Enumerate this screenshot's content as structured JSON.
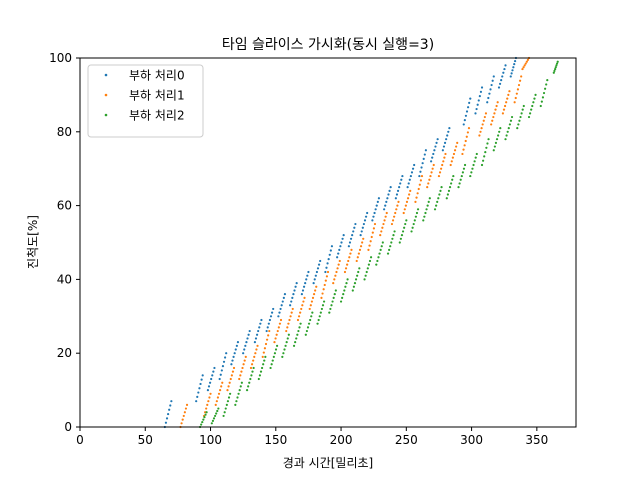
{
  "chart_data": {
    "type": "scatter",
    "title": "타임 슬라이스 가시화(동시 실행=3)",
    "xlabel": "경과 시간[밀리초]",
    "ylabel": "진척도[%]",
    "xlim": [
      0,
      380
    ],
    "ylim": [
      0,
      100
    ],
    "xticks": [
      0,
      50,
      100,
      150,
      200,
      250,
      300,
      350
    ],
    "yticks": [
      0,
      20,
      40,
      60,
      80,
      100
    ],
    "grid": false,
    "legend_position": "top-left",
    "series": [
      {
        "name": "부하 처리0",
        "color": "#1f77b4",
        "bursts": [
          [
            [
              65,
              0
            ],
            [
              70,
              7
            ]
          ],
          [
            [
              89,
              7
            ],
            [
              94,
              14
            ]
          ],
          [
            [
              98,
              10
            ],
            [
              103,
              16
            ]
          ],
          [
            [
              107,
              13
            ],
            [
              112,
              20
            ]
          ],
          [
            [
              116,
              17
            ],
            [
              121,
              23
            ]
          ],
          [
            [
              125,
              20
            ],
            [
              130,
              26
            ]
          ],
          [
            [
              134,
              23
            ],
            [
              139,
              29
            ]
          ],
          [
            [
              143,
              26
            ],
            [
              148,
              32
            ]
          ],
          [
            [
              152,
              30
            ],
            [
              157,
              36
            ]
          ],
          [
            [
              161,
              33
            ],
            [
              166,
              39
            ]
          ],
          [
            [
              170,
              36
            ],
            [
              175,
              42
            ]
          ],
          [
            [
              179,
              39
            ],
            [
              184,
              45
            ]
          ],
          [
            [
              188,
              42
            ],
            [
              193,
              49
            ]
          ],
          [
            [
              197,
              46
            ],
            [
              202,
              52
            ]
          ],
          [
            [
              206,
              49
            ],
            [
              211,
              55
            ]
          ],
          [
            [
              215,
              52
            ],
            [
              220,
              58
            ]
          ],
          [
            [
              224,
              56
            ],
            [
              229,
              62
            ]
          ],
          [
            [
              233,
              59
            ],
            [
              238,
              65
            ]
          ],
          [
            [
              242,
              62
            ],
            [
              247,
              68
            ]
          ],
          [
            [
              251,
              65
            ],
            [
              256,
              71
            ]
          ],
          [
            [
              260,
              68
            ],
            [
              265,
              75
            ]
          ],
          [
            [
              269,
              72
            ],
            [
              274,
              78
            ]
          ],
          [
            [
              278,
              75
            ],
            [
              283,
              81
            ]
          ],
          [
            [
              294,
              82
            ],
            [
              299,
              89
            ]
          ],
          [
            [
              303,
              85
            ],
            [
              308,
              92
            ]
          ],
          [
            [
              312,
              88
            ],
            [
              317,
              95
            ]
          ],
          [
            [
              321,
              92
            ],
            [
              326,
              98
            ]
          ],
          [
            [
              330,
              95
            ],
            [
              334,
              100
            ]
          ]
        ]
      },
      {
        "name": "부하 처리1",
        "color": "#ff7f0e",
        "bursts": [
          [
            [
              77,
              0
            ],
            [
              82,
              6
            ]
          ],
          [
            [
              95,
              3
            ],
            [
              100,
              9
            ]
          ],
          [
            [
              104,
              6
            ],
            [
              109,
              12
            ]
          ],
          [
            [
              113,
              10
            ],
            [
              118,
              16
            ]
          ],
          [
            [
              122,
              13
            ],
            [
              127,
              19
            ]
          ],
          [
            [
              131,
              16
            ],
            [
              136,
              22
            ]
          ],
          [
            [
              140,
              19
            ],
            [
              145,
              26
            ]
          ],
          [
            [
              149,
              23
            ],
            [
              154,
              29
            ]
          ],
          [
            [
              158,
              26
            ],
            [
              163,
              32
            ]
          ],
          [
            [
              167,
              29
            ],
            [
              172,
              35
            ]
          ],
          [
            [
              176,
              32
            ],
            [
              181,
              38
            ]
          ],
          [
            [
              185,
              35
            ],
            [
              190,
              42
            ]
          ],
          [
            [
              194,
              39
            ],
            [
              199,
              45
            ]
          ],
          [
            [
              203,
              42
            ],
            [
              208,
              48
            ]
          ],
          [
            [
              212,
              45
            ],
            [
              217,
              51
            ]
          ],
          [
            [
              221,
              48
            ],
            [
              226,
              55
            ]
          ],
          [
            [
              230,
              52
            ],
            [
              235,
              58
            ]
          ],
          [
            [
              239,
              55
            ],
            [
              244,
              61
            ]
          ],
          [
            [
              248,
              58
            ],
            [
              253,
              64
            ]
          ],
          [
            [
              257,
              61
            ],
            [
              262,
              68
            ]
          ],
          [
            [
              266,
              65
            ],
            [
              271,
              71
            ]
          ],
          [
            [
              275,
              68
            ],
            [
              280,
              74
            ]
          ],
          [
            [
              284,
              71
            ],
            [
              289,
              77
            ]
          ],
          [
            [
              293,
              74
            ],
            [
              298,
              81
            ]
          ],
          [
            [
              306,
              79
            ],
            [
              311,
              85
            ]
          ],
          [
            [
              315,
              82
            ],
            [
              320,
              88
            ]
          ],
          [
            [
              324,
              85
            ],
            [
              329,
              91
            ]
          ],
          [
            [
              333,
              88
            ],
            [
              338,
              95
            ]
          ],
          [
            [
              339,
              97
            ],
            [
              344,
              100
            ]
          ]
        ]
      },
      {
        "name": "부하 처리2",
        "color": "#2ca02c",
        "bursts": [
          [
            [
              92,
              0
            ],
            [
              97,
              4
            ]
          ],
          [
            [
              101,
              1
            ],
            [
              106,
              5
            ]
          ],
          [
            [
              110,
              3
            ],
            [
              115,
              9
            ]
          ],
          [
            [
              119,
              6
            ],
            [
              124,
              12
            ]
          ],
          [
            [
              128,
              10
            ],
            [
              133,
              16
            ]
          ],
          [
            [
              137,
              13
            ],
            [
              142,
              19
            ]
          ],
          [
            [
              146,
              16
            ],
            [
              151,
              22
            ]
          ],
          [
            [
              155,
              19
            ],
            [
              160,
              25
            ]
          ],
          [
            [
              164,
              22
            ],
            [
              169,
              28
            ]
          ],
          [
            [
              173,
              25
            ],
            [
              178,
              31
            ]
          ],
          [
            [
              182,
              28
            ],
            [
              187,
              34
            ]
          ],
          [
            [
              191,
              31
            ],
            [
              196,
              37
            ]
          ],
          [
            [
              200,
              34
            ],
            [
              205,
              40
            ]
          ],
          [
            [
              209,
              37
            ],
            [
              214,
              43
            ]
          ],
          [
            [
              218,
              40
            ],
            [
              223,
              46
            ]
          ],
          [
            [
              227,
              44
            ],
            [
              232,
              50
            ]
          ],
          [
            [
              236,
              47
            ],
            [
              241,
              53
            ]
          ],
          [
            [
              245,
              50
            ],
            [
              250,
              56
            ]
          ],
          [
            [
              254,
              53
            ],
            [
              259,
              59
            ]
          ],
          [
            [
              263,
              56
            ],
            [
              268,
              62
            ]
          ],
          [
            [
              272,
              59
            ],
            [
              277,
              65
            ]
          ],
          [
            [
              281,
              62
            ],
            [
              286,
              68
            ]
          ],
          [
            [
              290,
              65
            ],
            [
              295,
              71
            ]
          ],
          [
            [
              299,
              68
            ],
            [
              304,
              74
            ]
          ],
          [
            [
              308,
              71
            ],
            [
              313,
              78
            ]
          ],
          [
            [
              317,
              75
            ],
            [
              322,
              81
            ]
          ],
          [
            [
              326,
              78
            ],
            [
              331,
              84
            ]
          ],
          [
            [
              335,
              81
            ],
            [
              340,
              87
            ]
          ],
          [
            [
              344,
              84
            ],
            [
              349,
              90
            ]
          ],
          [
            [
              353,
              87
            ],
            [
              358,
              94
            ]
          ],
          [
            [
              363,
              96
            ],
            [
              366,
              99
            ]
          ]
        ]
      }
    ]
  }
}
